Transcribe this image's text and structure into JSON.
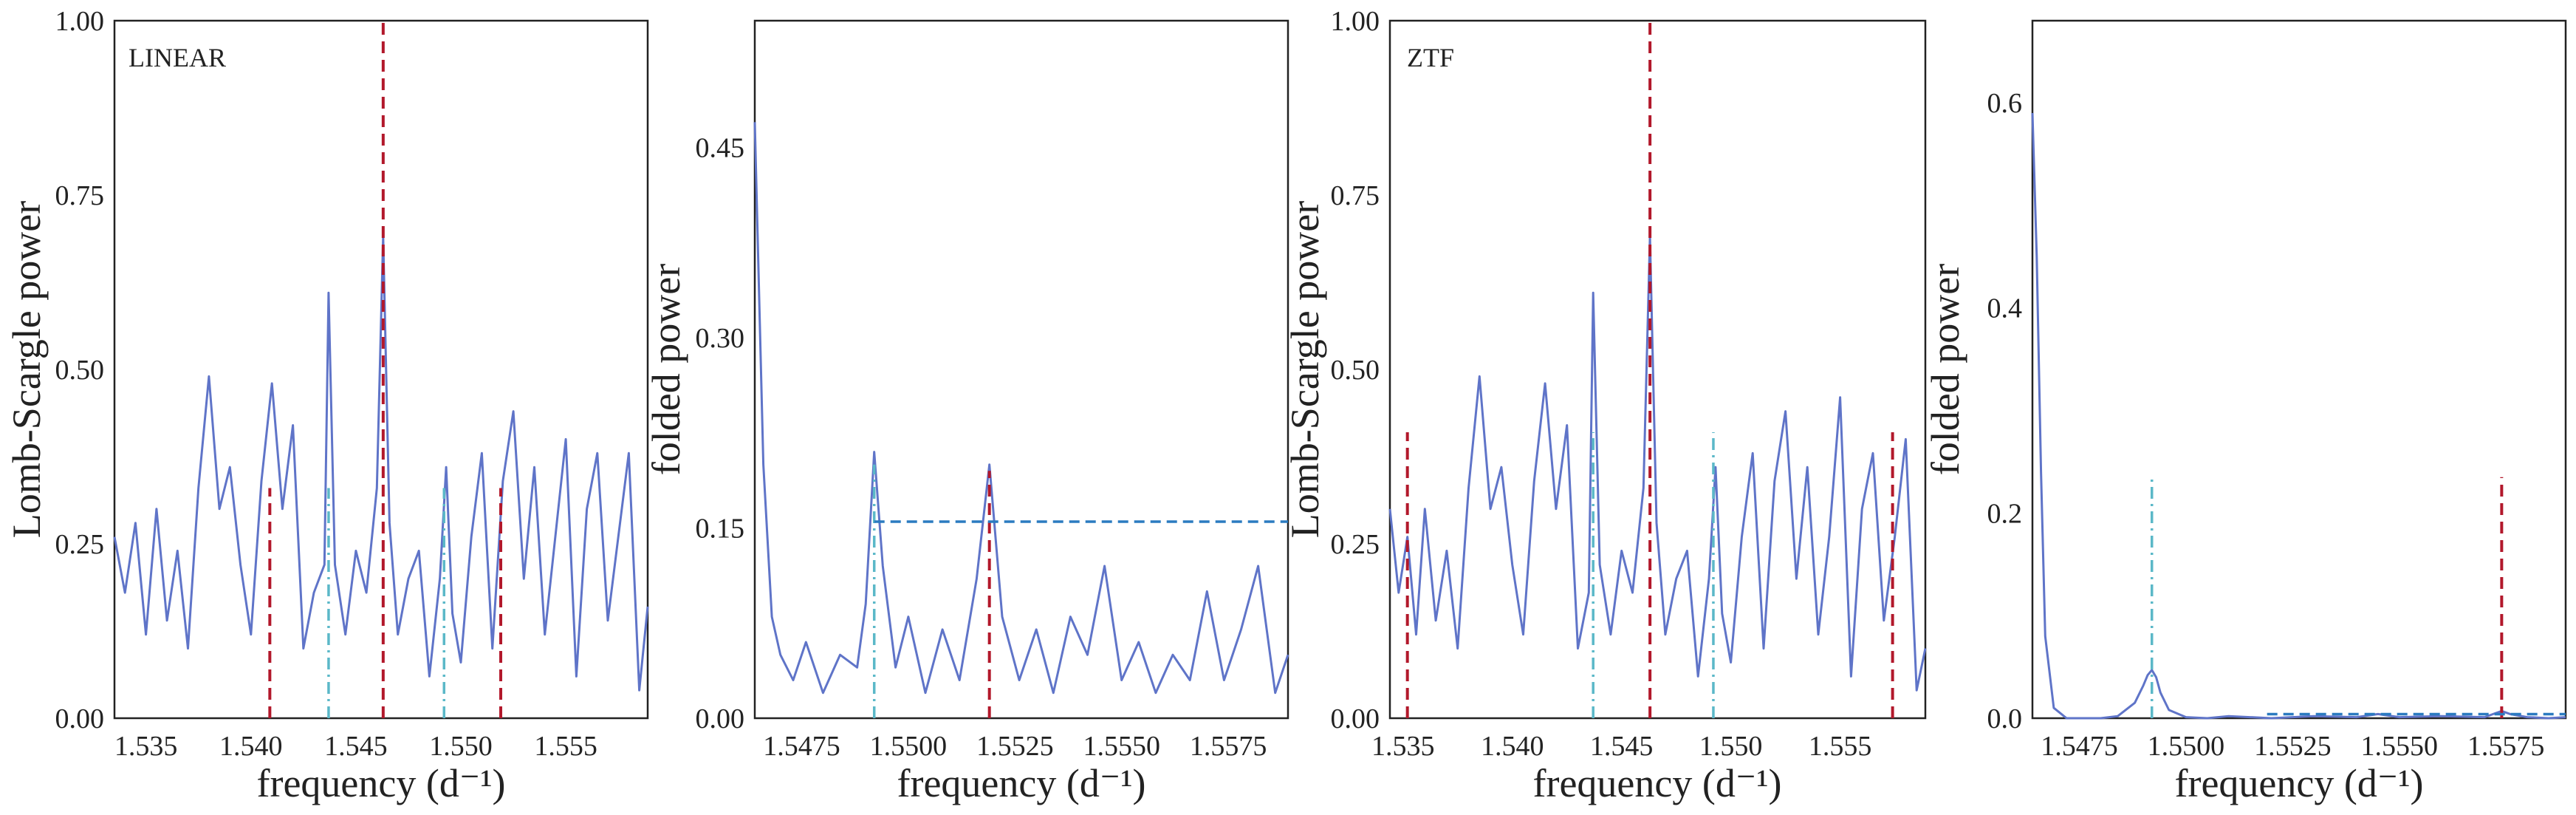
{
  "colors": {
    "series": "#5f74c8",
    "red_marker": "#b2182b",
    "cyan_marker": "#5bb8c8",
    "blue_threshold": "#2b7bc0",
    "frame": "#222222"
  },
  "chart_data": [
    {
      "type": "line",
      "panel_label": "LINEAR",
      "xlabel": "frequency (d⁻¹)",
      "ylabel": "Lomb-Scargle power",
      "xlim": [
        1.5335,
        1.5589
      ],
      "ylim": [
        0.0,
        1.0
      ],
      "xticks": [
        1.535,
        1.54,
        1.545,
        1.55,
        1.555
      ],
      "xtick_labels": [
        "1.535",
        "1.540",
        "1.545",
        "1.550",
        "1.555"
      ],
      "yticks": [
        0.0,
        0.25,
        0.5,
        0.75,
        1.0
      ],
      "ytick_labels": [
        "0.00",
        "0.25",
        "0.50",
        "0.75",
        "1.00"
      ],
      "series": [
        {
          "name": "periodogram",
          "x": [
            1.5335,
            1.534,
            1.5345,
            1.535,
            1.5355,
            1.536,
            1.5365,
            1.537,
            1.5375,
            1.538,
            1.5385,
            1.539,
            1.5395,
            1.54,
            1.5405,
            1.541,
            1.5415,
            1.542,
            1.5425,
            1.543,
            1.5435,
            1.5437,
            1.544,
            1.5445,
            1.545,
            1.5455,
            1.546,
            1.5463,
            1.5466,
            1.547,
            1.5475,
            1.548,
            1.5485,
            1.549,
            1.5493,
            1.5496,
            1.55,
            1.5505,
            1.551,
            1.5515,
            1.552,
            1.5525,
            1.553,
            1.5535,
            1.554,
            1.5545,
            1.555,
            1.5555,
            1.556,
            1.5565,
            1.557,
            1.5575,
            1.558,
            1.5585,
            1.5589
          ],
          "y": [
            0.26,
            0.18,
            0.28,
            0.12,
            0.3,
            0.14,
            0.24,
            0.1,
            0.33,
            0.49,
            0.3,
            0.36,
            0.22,
            0.12,
            0.34,
            0.48,
            0.3,
            0.42,
            0.1,
            0.18,
            0.22,
            0.61,
            0.22,
            0.12,
            0.24,
            0.18,
            0.33,
            0.69,
            0.28,
            0.12,
            0.2,
            0.24,
            0.06,
            0.2,
            0.36,
            0.15,
            0.08,
            0.26,
            0.38,
            0.1,
            0.34,
            0.44,
            0.2,
            0.36,
            0.12,
            0.26,
            0.4,
            0.06,
            0.3,
            0.38,
            0.14,
            0.26,
            0.38,
            0.04,
            0.16
          ]
        }
      ],
      "vlines": [
        {
          "x": 1.5463,
          "ymax": 1.0,
          "style": "red-dashed"
        },
        {
          "x": 1.5409,
          "ymax": 0.33,
          "style": "red-dashed"
        },
        {
          "x": 1.5519,
          "ymax": 0.33,
          "style": "red-dashed"
        },
        {
          "x": 1.5437,
          "ymax": 0.33,
          "style": "cyan-dashdot"
        },
        {
          "x": 1.5492,
          "ymax": 0.33,
          "style": "cyan-dashdot"
        }
      ],
      "hlines": []
    },
    {
      "type": "line",
      "panel_label": "",
      "xlabel": "frequency (d⁻¹)",
      "ylabel": "folded power",
      "xlim": [
        1.5464,
        1.5589
      ],
      "ylim": [
        0.0,
        0.55
      ],
      "xticks": [
        1.5475,
        1.55,
        1.5525,
        1.555,
        1.5575
      ],
      "xtick_labels": [
        "1.5475",
        "1.5500",
        "1.5525",
        "1.5550",
        "1.5575"
      ],
      "yticks": [
        0.0,
        0.15,
        0.3,
        0.45
      ],
      "ytick_labels": [
        "0.00",
        "0.15",
        "0.30",
        "0.45"
      ],
      "series": [
        {
          "name": "folded periodogram",
          "x": [
            1.5464,
            1.5466,
            1.5468,
            1.547,
            1.5473,
            1.5476,
            1.548,
            1.5484,
            1.5488,
            1.549,
            1.5492,
            1.5494,
            1.5497,
            1.55,
            1.5504,
            1.5508,
            1.5512,
            1.5516,
            1.5519,
            1.5522,
            1.5526,
            1.553,
            1.5534,
            1.5538,
            1.5542,
            1.5546,
            1.555,
            1.5554,
            1.5558,
            1.5562,
            1.5566,
            1.557,
            1.5574,
            1.5578,
            1.5582,
            1.5586,
            1.5589
          ],
          "y": [
            0.47,
            0.2,
            0.08,
            0.05,
            0.03,
            0.06,
            0.02,
            0.05,
            0.04,
            0.09,
            0.21,
            0.12,
            0.04,
            0.08,
            0.02,
            0.07,
            0.03,
            0.11,
            0.2,
            0.08,
            0.03,
            0.07,
            0.02,
            0.08,
            0.05,
            0.12,
            0.03,
            0.06,
            0.02,
            0.05,
            0.03,
            0.1,
            0.03,
            0.07,
            0.12,
            0.02,
            0.05
          ]
        }
      ],
      "vlines": [
        {
          "x": 1.5492,
          "ymax": 0.2,
          "style": "cyan-dashdot"
        },
        {
          "x": 1.5519,
          "ymax": 0.195,
          "style": "red-dashed"
        }
      ],
      "hlines": [
        {
          "y": 0.155,
          "xmin": 1.5492,
          "xmax": 1.5589,
          "style": "blue-dashed"
        }
      ]
    },
    {
      "type": "line",
      "panel_label": "ZTF",
      "xlabel": "frequency (d⁻¹)",
      "ylabel": "Lomb-Scargle power",
      "xlim": [
        1.5344,
        1.5589
      ],
      "ylim": [
        0.0,
        1.0
      ],
      "xticks": [
        1.535,
        1.54,
        1.545,
        1.55,
        1.555
      ],
      "xtick_labels": [
        "1.535",
        "1.540",
        "1.545",
        "1.550",
        "1.555"
      ],
      "yticks": [
        0.0,
        0.25,
        0.5,
        0.75,
        1.0
      ],
      "ytick_labels": [
        "0.00",
        "0.25",
        "0.50",
        "0.75",
        "1.00"
      ],
      "series": [
        {
          "name": "periodogram",
          "x": [
            1.5344,
            1.5348,
            1.5352,
            1.5356,
            1.536,
            1.5365,
            1.537,
            1.5375,
            1.538,
            1.5385,
            1.539,
            1.5395,
            1.54,
            1.5405,
            1.541,
            1.5415,
            1.542,
            1.5425,
            1.543,
            1.5435,
            1.5437,
            1.544,
            1.5445,
            1.545,
            1.5455,
            1.546,
            1.5463,
            1.5466,
            1.547,
            1.5475,
            1.548,
            1.5485,
            1.549,
            1.5493,
            1.5496,
            1.55,
            1.5505,
            1.551,
            1.5515,
            1.552,
            1.5525,
            1.553,
            1.5535,
            1.554,
            1.5545,
            1.555,
            1.5555,
            1.556,
            1.5565,
            1.557,
            1.5575,
            1.558,
            1.5585,
            1.5589
          ],
          "y": [
            0.3,
            0.18,
            0.26,
            0.12,
            0.3,
            0.14,
            0.24,
            0.1,
            0.33,
            0.49,
            0.3,
            0.36,
            0.22,
            0.12,
            0.34,
            0.48,
            0.3,
            0.42,
            0.1,
            0.18,
            0.61,
            0.22,
            0.12,
            0.24,
            0.18,
            0.33,
            0.69,
            0.28,
            0.12,
            0.2,
            0.24,
            0.06,
            0.2,
            0.36,
            0.15,
            0.08,
            0.26,
            0.38,
            0.1,
            0.34,
            0.44,
            0.2,
            0.36,
            0.12,
            0.26,
            0.46,
            0.06,
            0.3,
            0.38,
            0.14,
            0.26,
            0.4,
            0.04,
            0.1
          ]
        }
      ],
      "vlines": [
        {
          "x": 1.5463,
          "ymax": 1.0,
          "style": "red-dashed"
        },
        {
          "x": 1.5352,
          "ymax": 0.41,
          "style": "red-dashed"
        },
        {
          "x": 1.5574,
          "ymax": 0.41,
          "style": "red-dashed"
        },
        {
          "x": 1.5437,
          "ymax": 0.41,
          "style": "cyan-dashdot"
        },
        {
          "x": 1.5492,
          "ymax": 0.41,
          "style": "cyan-dashdot"
        }
      ],
      "hlines": []
    },
    {
      "type": "line",
      "panel_label": "",
      "xlabel": "frequency (d⁻¹)",
      "ylabel": "folded power",
      "xlim": [
        1.5464,
        1.5589
      ],
      "ylim": [
        0.0,
        0.68
      ],
      "xticks": [
        1.5475,
        1.55,
        1.5525,
        1.555,
        1.5575
      ],
      "xtick_labels": [
        "1.5475",
        "1.5500",
        "1.5525",
        "1.5550",
        "1.5575"
      ],
      "yticks": [
        0.0,
        0.2,
        0.4,
        0.6
      ],
      "ytick_labels": [
        "0.0",
        "0.2",
        "0.4",
        "0.6"
      ],
      "series": [
        {
          "name": "folded periodogram",
          "x": [
            1.5464,
            1.5465,
            1.5466,
            1.5467,
            1.5469,
            1.5472,
            1.5476,
            1.548,
            1.5484,
            1.5488,
            1.549,
            1.5491,
            1.5492,
            1.5493,
            1.5494,
            1.5496,
            1.55,
            1.5505,
            1.551,
            1.552,
            1.553,
            1.554,
            1.5545,
            1.555,
            1.556,
            1.557,
            1.5572,
            1.5574,
            1.5576,
            1.558,
            1.5585,
            1.5589
          ],
          "y": [
            0.59,
            0.45,
            0.24,
            0.08,
            0.01,
            0.0,
            0.0,
            0.0,
            0.002,
            0.015,
            0.032,
            0.042,
            0.047,
            0.04,
            0.025,
            0.008,
            0.001,
            0.0,
            0.002,
            0.0,
            0.002,
            0.001,
            0.004,
            0.001,
            0.002,
            0.001,
            0.004,
            0.007,
            0.004,
            0.001,
            0.0,
            0.001
          ]
        }
      ],
      "vlines": [
        {
          "x": 1.5492,
          "ymax": 0.235,
          "style": "cyan-dashdot"
        },
        {
          "x": 1.5574,
          "ymax": 0.235,
          "style": "red-dashed"
        }
      ],
      "hlines": [
        {
          "y": 0.004,
          "xmin": 1.5519,
          "xmax": 1.5589,
          "style": "blue-dashed"
        }
      ]
    }
  ]
}
